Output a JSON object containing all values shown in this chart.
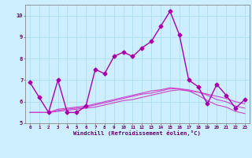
{
  "xlabel": "Windchill (Refroidissement éolien,°C)",
  "ylabel": "",
  "background_color": "#cceeff",
  "grid_color": "#aaddee",
  "xlim": [
    -0.5,
    23.5
  ],
  "ylim": [
    5,
    10.5
  ],
  "yticks": [
    5,
    6,
    7,
    8,
    9,
    10
  ],
  "xticks": [
    0,
    1,
    2,
    3,
    4,
    5,
    6,
    7,
    8,
    9,
    10,
    11,
    12,
    13,
    14,
    15,
    16,
    17,
    18,
    19,
    20,
    21,
    22,
    23
  ],
  "series": [
    {
      "x": [
        0,
        1,
        2,
        3,
        4,
        5,
        6,
        7,
        8,
        9,
        10,
        11,
        12,
        13,
        14,
        15,
        16,
        17,
        18,
        19,
        20,
        21,
        22,
        23
      ],
      "y": [
        6.9,
        6.2,
        5.5,
        7.0,
        5.5,
        5.5,
        5.8,
        7.5,
        7.3,
        8.1,
        8.3,
        8.1,
        8.5,
        8.8,
        9.5,
        10.2,
        9.1,
        7.0,
        6.7,
        5.9,
        6.8,
        6.3,
        5.7,
        6.1
      ],
      "color": "#aa00aa",
      "marker": "D",
      "markersize": 2.5,
      "linewidth": 1.0
    },
    {
      "x": [
        0,
        1,
        2,
        3,
        4,
        5,
        6,
        7,
        8,
        9,
        10,
        11,
        12,
        13,
        14,
        15,
        16,
        17,
        18,
        19,
        20,
        21,
        22,
        23
      ],
      "y": [
        5.5,
        5.5,
        5.5,
        5.55,
        5.6,
        5.65,
        5.7,
        5.75,
        5.85,
        5.95,
        6.05,
        6.1,
        6.2,
        6.3,
        6.4,
        6.5,
        6.55,
        6.5,
        6.45,
        6.35,
        6.25,
        6.15,
        6.0,
        5.9
      ],
      "color": "#cc44cc",
      "marker": null,
      "markersize": 0,
      "linewidth": 0.8
    },
    {
      "x": [
        0,
        1,
        2,
        3,
        4,
        5,
        6,
        7,
        8,
        9,
        10,
        11,
        12,
        13,
        14,
        15,
        16,
        17,
        18,
        19,
        20,
        21,
        22,
        23
      ],
      "y": [
        5.5,
        5.5,
        5.5,
        5.6,
        5.65,
        5.7,
        5.75,
        5.85,
        5.95,
        6.05,
        6.15,
        6.25,
        6.35,
        6.4,
        6.5,
        6.6,
        6.6,
        6.55,
        6.45,
        6.3,
        6.1,
        6.0,
        5.8,
        5.7
      ],
      "color": "#cc44cc",
      "marker": null,
      "markersize": 0,
      "linewidth": 0.8
    },
    {
      "x": [
        0,
        1,
        2,
        3,
        4,
        5,
        6,
        7,
        8,
        9,
        10,
        11,
        12,
        13,
        14,
        15,
        16,
        17,
        18,
        19,
        20,
        21,
        22,
        23
      ],
      "y": [
        5.5,
        5.5,
        5.5,
        5.65,
        5.7,
        5.75,
        5.8,
        5.9,
        6.0,
        6.1,
        6.2,
        6.3,
        6.4,
        6.5,
        6.55,
        6.65,
        6.6,
        6.5,
        6.3,
        6.05,
        5.85,
        5.75,
        5.55,
        5.45
      ],
      "color": "#cc44cc",
      "marker": null,
      "markersize": 0,
      "linewidth": 0.8
    }
  ]
}
